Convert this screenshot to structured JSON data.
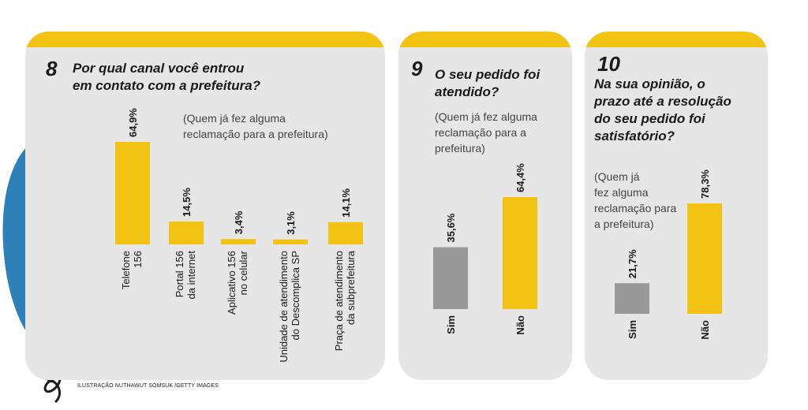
{
  "credit": "ILUSTRAÇÃO NUTHAWUT SOMSUK /GETTY IMAGES",
  "colors": {
    "highlight": "#f2c313",
    "neutral": "#999999",
    "panel": "#e6e6e7",
    "phone": "#2e80b8"
  },
  "chart_data": [
    {
      "type": "bar",
      "number": "8",
      "title_lines": [
        "Por qual canal você entrou",
        "em contato com a prefeitura?"
      ],
      "note_lines": [
        "(Quem já fez alguma",
        "reclamação para a prefeitura)"
      ],
      "ylim": [
        0,
        70
      ],
      "categories": [
        [
          "Telefone",
          "156"
        ],
        [
          "Portal 156",
          "da internet"
        ],
        [
          "Aplicativo 156",
          "no celular"
        ],
        [
          "Unidade de atendimento",
          "do Descomplica SP"
        ],
        [
          "Praça de atendimento",
          "da subprefeitura"
        ]
      ],
      "values": [
        64.9,
        14.5,
        3.4,
        3.1,
        14.1
      ],
      "labels": [
        "64,9%",
        "14,5%",
        "3,4%",
        "3,1%",
        "14,1%"
      ]
    },
    {
      "type": "bar",
      "number": "9",
      "title_lines": [
        "O seu pedido foi",
        "atendido?"
      ],
      "note_lines": [
        "(Quem já fez alguma",
        "reclamação para a",
        "prefeitura)"
      ],
      "ylim": [
        0,
        70
      ],
      "categories": [
        "Sim",
        "Não"
      ],
      "values": [
        35.6,
        64.4
      ],
      "labels": [
        "35,6%",
        "64,4%"
      ],
      "bar_colors": [
        "#999999",
        "#f2c313"
      ]
    },
    {
      "type": "bar",
      "number": "10",
      "title_lines": [
        "Na sua opinião, o",
        "prazo até a resolução",
        "do seu pedido foi",
        "satisfatório?"
      ],
      "note_lines": [
        "(Quem já",
        "fez alguma",
        "reclamação para",
        "a prefeitura)"
      ],
      "ylim": [
        0,
        80
      ],
      "categories": [
        "Sim",
        "Não"
      ],
      "values": [
        21.7,
        78.3
      ],
      "labels": [
        "21,7%",
        "78,3%"
      ],
      "bar_colors": [
        "#999999",
        "#f2c313"
      ]
    }
  ]
}
